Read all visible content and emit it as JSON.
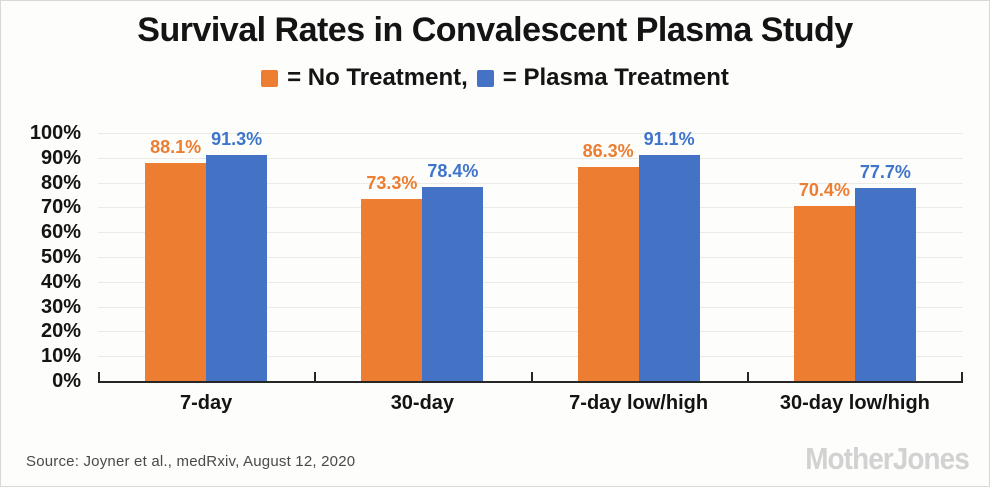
{
  "title": "Survival Rates in Convalescent Plasma Study",
  "legend": {
    "no_treatment_label": "= No Treatment,",
    "plasma_label": "= Plasma Treatment"
  },
  "chart_data": {
    "type": "bar",
    "categories": [
      "7-day",
      "30-day",
      "7-day low/high",
      "30-day low/high"
    ],
    "series": [
      {
        "name": "No Treatment",
        "color": "#ED7D31",
        "label_color": "#ED7D31",
        "values": [
          88.1,
          73.3,
          86.3,
          70.4
        ]
      },
      {
        "name": "Plasma Treatment",
        "color": "#4472C4",
        "label_color": "#3E74CB",
        "values": [
          91.3,
          78.4,
          91.1,
          77.7
        ]
      }
    ],
    "title": "Survival Rates in Convalescent Plasma Study",
    "xlabel": "",
    "ylabel": "",
    "ylim": [
      0,
      100
    ],
    "ytick_step": 10,
    "ytick_suffix": "%",
    "value_suffix": "%",
    "value_decimals": 1,
    "grid": true,
    "legend_position": "top"
  },
  "footer": {
    "source": "Source: Joyner et al., medRxiv, August 12, 2020",
    "logo": "MotherJones"
  }
}
